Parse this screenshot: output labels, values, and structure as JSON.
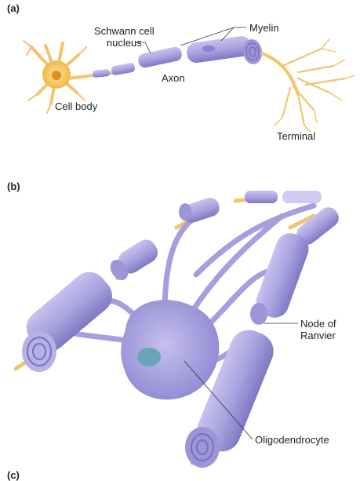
{
  "panels": {
    "a": "(a)",
    "b": "(b)",
    "c": "(c)"
  },
  "labels_a": {
    "schwann_line1": "Schwann cell",
    "schwann_line2": "nucleus",
    "myelin": "Myelin",
    "axon": "Axon",
    "cell_body": "Cell body",
    "terminal": "Terminal"
  },
  "labels_b": {
    "node_line1": "Node of",
    "node_line2": "Ranvier",
    "oligodendrocyte": "Oligodendrocyte"
  },
  "colors": {
    "myelin": "#a9a3df",
    "myelin_dark": "#7f78c4",
    "axon": "#f2c56a",
    "cell_body": "#f6c35c",
    "nucleus": "#6aa4b8"
  }
}
